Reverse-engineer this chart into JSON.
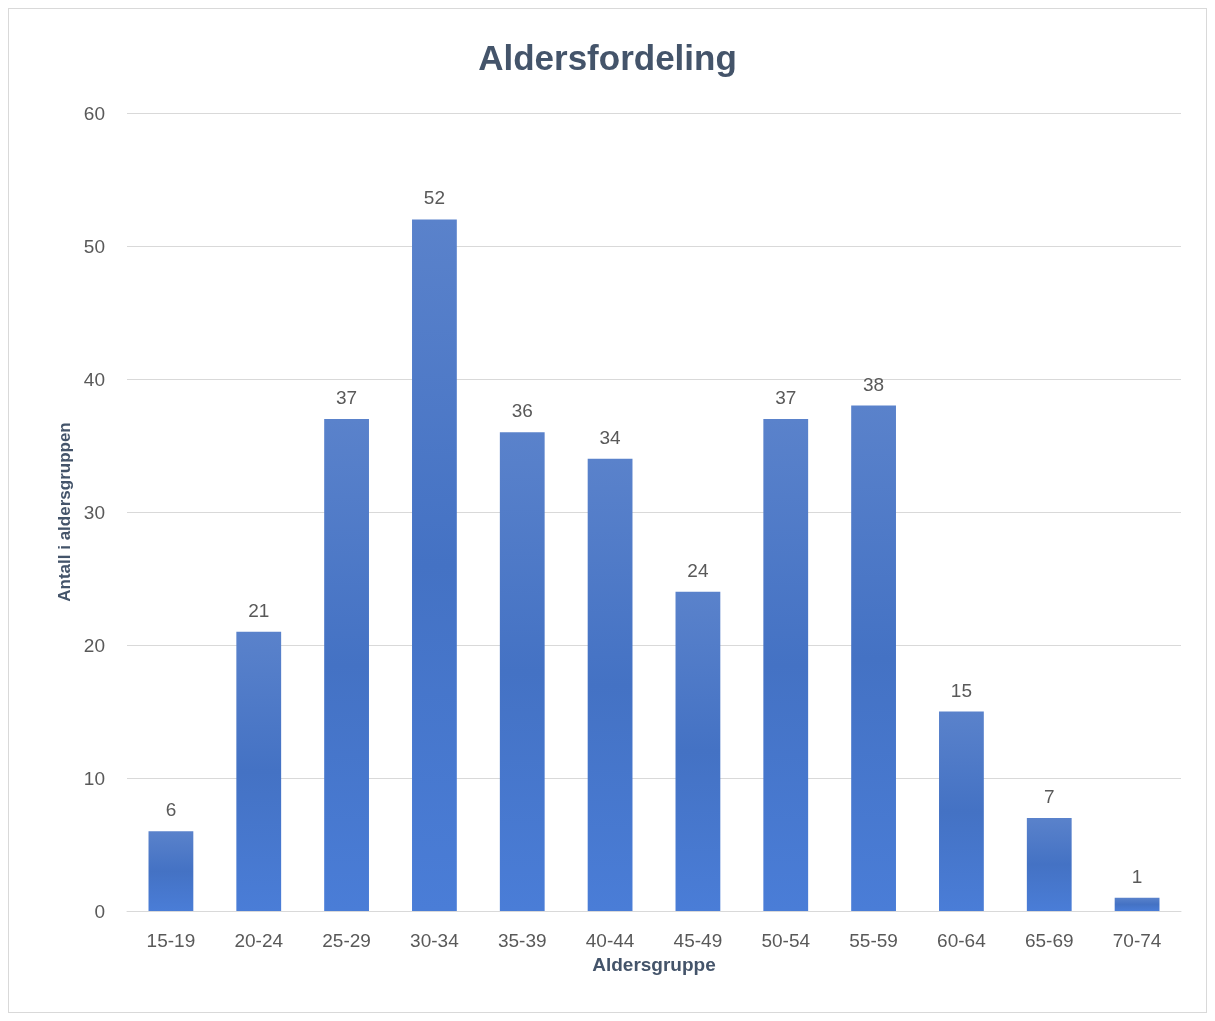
{
  "chart_data": {
    "type": "bar",
    "title": "Aldersfordeling",
    "xlabel": "Aldersgruppe",
    "ylabel": "Antall i aldersgruppen",
    "categories": [
      "15-19",
      "20-24",
      "25-29",
      "30-34",
      "35-39",
      "40-44",
      "45-49",
      "50-54",
      "55-59",
      "60-64",
      "65-69",
      "70-74"
    ],
    "values": [
      6,
      21,
      37,
      52,
      36,
      34,
      24,
      37,
      38,
      15,
      7,
      1
    ],
    "color": "#4472c4",
    "ylim": [
      0,
      60
    ],
    "yticks": [
      0,
      10,
      20,
      30,
      40,
      50,
      60
    ],
    "grid": "y",
    "data_labels": true
  }
}
